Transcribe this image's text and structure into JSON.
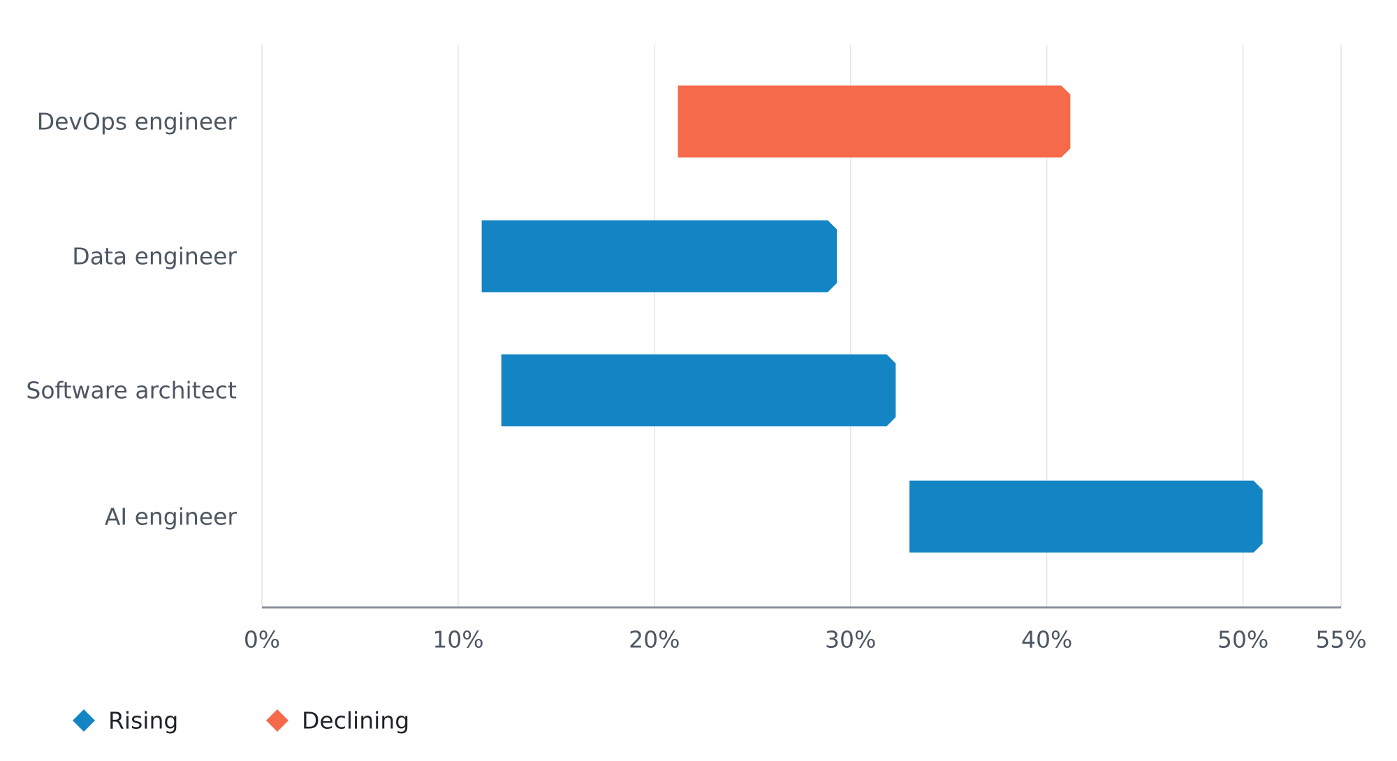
{
  "chart_data": {
    "type": "range-bar",
    "categories": [
      "DevOps engineer",
      "Data engineer",
      "Software architect",
      "AI engineer"
    ],
    "series": [
      {
        "name": "Rising",
        "color": "#1485c4",
        "values": [
          null,
          [
            11.2,
            29.3
          ],
          [
            12.2,
            32.3
          ],
          [
            33,
            51
          ]
        ]
      },
      {
        "name": "Declining",
        "color": "#f46a4b",
        "values": [
          [
            21.2,
            41.2
          ],
          null,
          null,
          null
        ]
      }
    ],
    "xlim": [
      0,
      55
    ],
    "xticks": [
      {
        "value": 0,
        "label": "0%"
      },
      {
        "value": 10,
        "label": "10%"
      },
      {
        "value": 20,
        "label": "20%"
      },
      {
        "value": 30,
        "label": "30%"
      },
      {
        "value": 40,
        "label": "40%"
      },
      {
        "value": 50,
        "label": "50%"
      },
      {
        "value": 55,
        "label": "55%"
      }
    ],
    "grid": true,
    "legend": "bottom-left"
  }
}
